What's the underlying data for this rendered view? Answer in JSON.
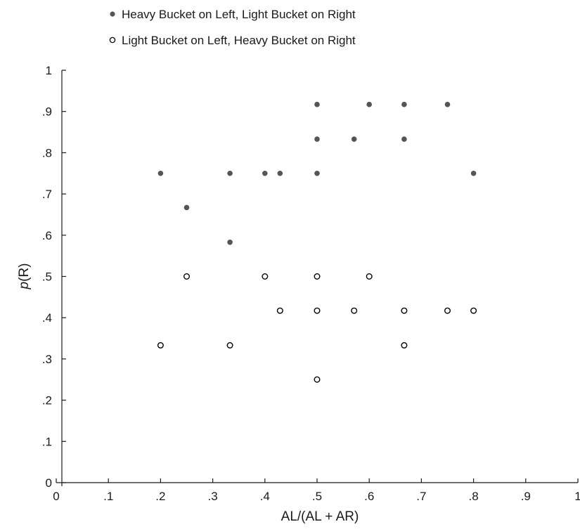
{
  "chart_data": {
    "type": "scatter",
    "title": "",
    "xlabel": "AL/(AL + AR)",
    "ylabel_italic": "p",
    "ylabel_rest": "(R)",
    "xlim": [
      0,
      1
    ],
    "ylim": [
      0,
      1
    ],
    "grid": false,
    "legend_placement": "top-left",
    "x_ticks": [
      {
        "value": 0,
        "label": "0"
      },
      {
        "value": 0.1,
        "label": ".1"
      },
      {
        "value": 0.2,
        "label": ".2"
      },
      {
        "value": 0.3,
        "label": ".3"
      },
      {
        "value": 0.4,
        "label": ".4"
      },
      {
        "value": 0.5,
        "label": ".5"
      },
      {
        "value": 0.6,
        "label": ".6"
      },
      {
        "value": 0.7,
        "label": ".7"
      },
      {
        "value": 0.8,
        "label": ".8"
      },
      {
        "value": 0.9,
        "label": ".9"
      },
      {
        "value": 1,
        "label": "1"
      }
    ],
    "y_ticks": [
      {
        "value": 0,
        "label": "0"
      },
      {
        "value": 0.1,
        "label": ".1"
      },
      {
        "value": 0.2,
        "label": ".2"
      },
      {
        "value": 0.3,
        "label": ".3"
      },
      {
        "value": 0.4,
        "label": ".4"
      },
      {
        "value": 0.5,
        "label": ".5"
      },
      {
        "value": 0.6,
        "label": ".6"
      },
      {
        "value": 0.7,
        "label": ".7"
      },
      {
        "value": 0.8,
        "label": ".8"
      },
      {
        "value": 0.9,
        "label": ".9"
      },
      {
        "value": 1,
        "label": "1"
      }
    ],
    "series": [
      {
        "name": "Heavy Bucket on Left, Light Bucket on Right",
        "marker": "filled-circle",
        "color": "#555555",
        "points": [
          {
            "x": 0.2,
            "y": 0.75
          },
          {
            "x": 0.25,
            "y": 0.667
          },
          {
            "x": 0.333,
            "y": 0.75
          },
          {
            "x": 0.333,
            "y": 0.583
          },
          {
            "x": 0.4,
            "y": 0.75
          },
          {
            "x": 0.429,
            "y": 0.75
          },
          {
            "x": 0.5,
            "y": 0.917
          },
          {
            "x": 0.5,
            "y": 0.833
          },
          {
            "x": 0.5,
            "y": 0.75
          },
          {
            "x": 0.571,
            "y": 0.833
          },
          {
            "x": 0.6,
            "y": 0.917
          },
          {
            "x": 0.667,
            "y": 0.917
          },
          {
            "x": 0.667,
            "y": 0.833
          },
          {
            "x": 0.75,
            "y": 0.917
          },
          {
            "x": 0.8,
            "y": 0.75
          }
        ]
      },
      {
        "name": "Light Bucket on Left, Heavy Bucket on Right",
        "marker": "open-circle",
        "color": "#000000",
        "points": [
          {
            "x": 0.2,
            "y": 0.333
          },
          {
            "x": 0.25,
            "y": 0.5
          },
          {
            "x": 0.333,
            "y": 0.333
          },
          {
            "x": 0.4,
            "y": 0.5
          },
          {
            "x": 0.429,
            "y": 0.417
          },
          {
            "x": 0.5,
            "y": 0.5
          },
          {
            "x": 0.5,
            "y": 0.417
          },
          {
            "x": 0.5,
            "y": 0.25
          },
          {
            "x": 0.571,
            "y": 0.417
          },
          {
            "x": 0.6,
            "y": 0.5
          },
          {
            "x": 0.667,
            "y": 0.417
          },
          {
            "x": 0.667,
            "y": 0.333
          },
          {
            "x": 0.75,
            "y": 0.417
          },
          {
            "x": 0.8,
            "y": 0.417
          }
        ]
      }
    ]
  }
}
